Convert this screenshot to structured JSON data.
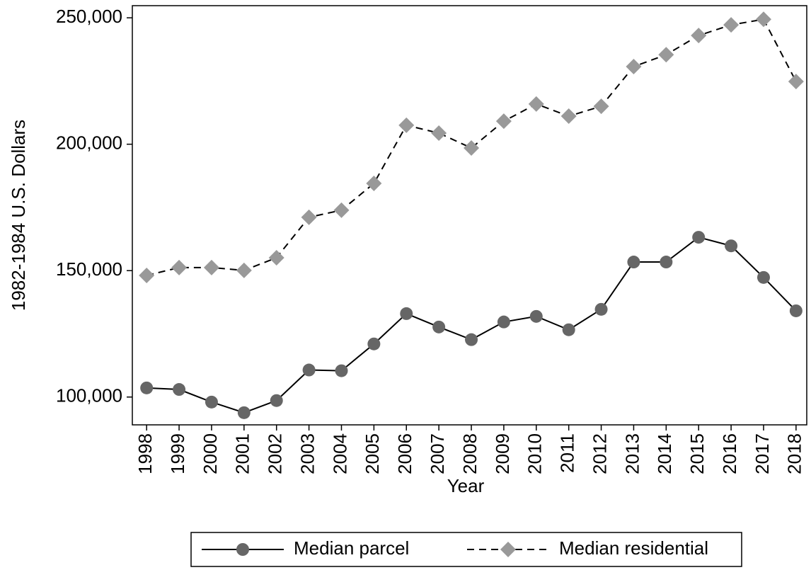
{
  "chart_data": {
    "type": "line",
    "x_label": "Year",
    "y_label": "1982-1984 U.S. Dollars",
    "x": [
      1998,
      1999,
      2000,
      2001,
      2002,
      2003,
      2004,
      2005,
      2006,
      2007,
      2008,
      2009,
      2010,
      2011,
      2012,
      2013,
      2014,
      2015,
      2016,
      2017,
      2018
    ],
    "series": [
      {
        "name": "Median parcel",
        "color": "#666666",
        "line_color": "#000000",
        "dash": "solid",
        "marker": "circle",
        "values": [
          103600,
          103000,
          98000,
          93800,
          98600,
          110700,
          110400,
          121000,
          133000,
          127700,
          122700,
          129700,
          131900,
          126600,
          134700,
          153400,
          153400,
          163200,
          159800,
          147300,
          134100
        ]
      },
      {
        "name": "Median residential",
        "color": "#999999",
        "line_color": "#000000",
        "dash": "dashed",
        "marker": "diamond",
        "values": [
          148100,
          151200,
          151200,
          150100,
          155100,
          171100,
          173900,
          184500,
          207500,
          204400,
          198500,
          209100,
          215900,
          211100,
          215000,
          230700,
          235400,
          243000,
          247200,
          249400,
          224800
        ]
      }
    ],
    "xlim": [
      1997.56,
      2018.33
    ],
    "ylim": [
      89000,
      254800
    ],
    "xticks": [
      1998,
      1999,
      2000,
      2001,
      2002,
      2003,
      2004,
      2005,
      2006,
      2007,
      2008,
      2009,
      2010,
      2011,
      2012,
      2013,
      2014,
      2015,
      2016,
      2017,
      2018
    ],
    "yticks": [
      {
        "value": 100000,
        "label": "100,000"
      },
      {
        "value": 150000,
        "label": "150,000"
      },
      {
        "value": 200000,
        "label": "200,000"
      },
      {
        "value": 250000,
        "label": "250,000"
      }
    ],
    "grid": false,
    "legend": "bottom"
  }
}
